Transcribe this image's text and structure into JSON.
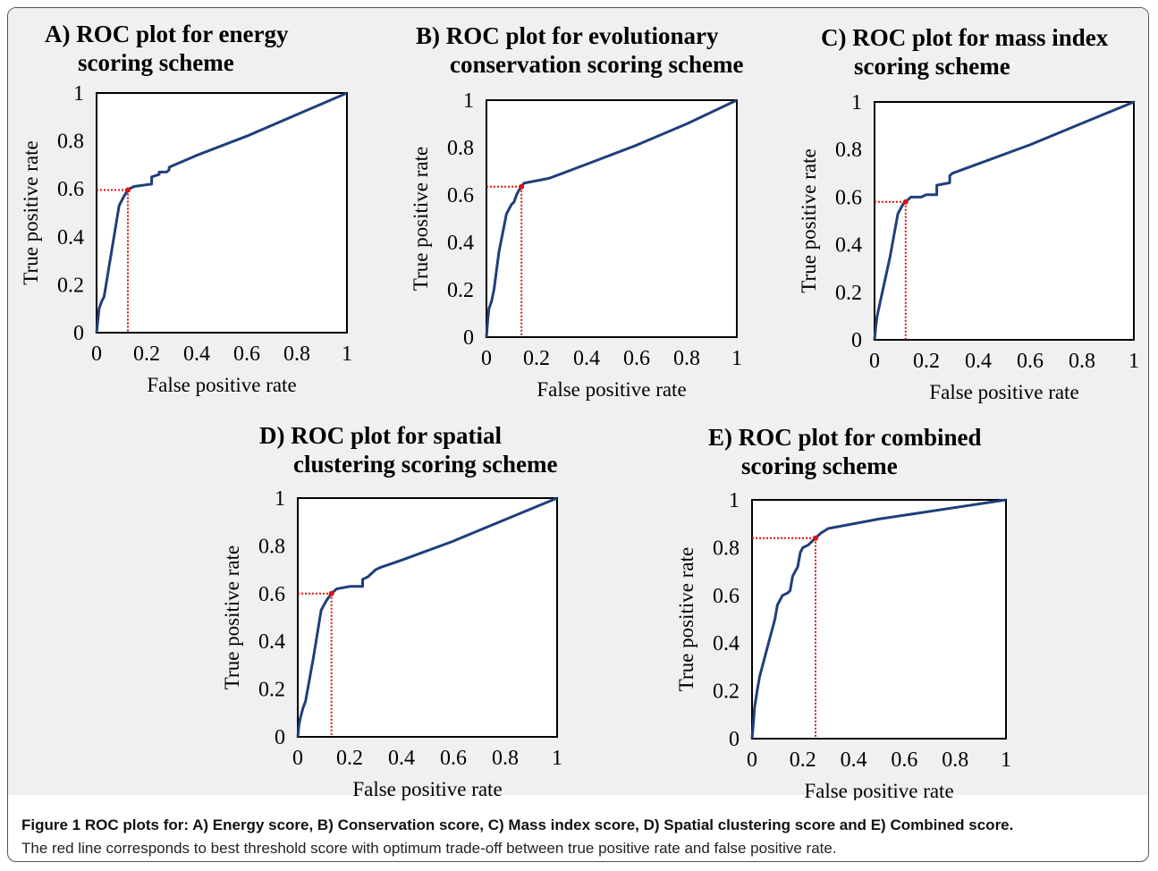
{
  "caption": {
    "figure_label": "Figure 1",
    "bold_text": "ROC plots for: A) Energy score, B) Conservation score, C) Mass index score, D) Spatial clustering score and E) Combined score.",
    "text": "The red line corresponds to best threshold score with optimum trade-off between true positive rate and false positive rate."
  },
  "colors": {
    "curve": "#1f3f7a",
    "threshold": "#dd1111",
    "axis": "#000000"
  },
  "chart_data": [
    {
      "type": "line",
      "title_lines": [
        "A) ROC plot for energy",
        "scoring scheme"
      ],
      "xlabel": "False positive rate",
      "ylabel": "True positive rate",
      "xlim": [
        0,
        1
      ],
      "ylim": [
        0,
        1
      ],
      "x_ticks": [
        "0",
        "0.2",
        "0.4",
        "0.6",
        "0.8",
        "1"
      ],
      "y_ticks": [
        "0",
        "0.2",
        "0.4",
        "0.6",
        "0.8",
        "1"
      ],
      "grid": false,
      "threshold": {
        "fpr": 0.125,
        "tpr": 0.595
      },
      "series": [
        {
          "x": [
            0,
            0.005,
            0.01,
            0.02,
            0.03,
            0.06,
            0.09,
            0.1,
            0.11,
            0.125,
            0.13,
            0.15,
            0.22,
            0.22,
            0.25,
            0.25,
            0.28,
            0.29,
            0.29,
            0.3,
            0.4,
            0.6,
            0.8,
            1.0
          ],
          "y": [
            0,
            0.05,
            0.1,
            0.13,
            0.15,
            0.34,
            0.53,
            0.55,
            0.57,
            0.595,
            0.6,
            0.61,
            0.62,
            0.65,
            0.66,
            0.67,
            0.67,
            0.68,
            0.69,
            0.695,
            0.74,
            0.82,
            0.91,
            1.0
          ]
        }
      ]
    },
    {
      "type": "line",
      "title_lines": [
        "B) ROC plot for evolutionary",
        "conservation scoring scheme"
      ],
      "xlabel": "False positive rate",
      "ylabel": "True positive rate",
      "xlim": [
        0,
        1
      ],
      "ylim": [
        0,
        1
      ],
      "x_ticks": [
        "0",
        "0.2",
        "0.4",
        "0.6",
        "0.8",
        "1"
      ],
      "y_ticks": [
        "0",
        "0.2",
        "0.4",
        "0.6",
        "0.8",
        "1"
      ],
      "grid": false,
      "threshold": {
        "fpr": 0.14,
        "tpr": 0.635
      },
      "series": [
        {
          "x": [
            0,
            0.005,
            0.01,
            0.02,
            0.03,
            0.05,
            0.08,
            0.1,
            0.11,
            0.12,
            0.13,
            0.14,
            0.15,
            0.2,
            0.25,
            0.3,
            0.4,
            0.6,
            0.8,
            1.0
          ],
          "y": [
            0,
            0.07,
            0.12,
            0.15,
            0.2,
            0.36,
            0.52,
            0.56,
            0.57,
            0.6,
            0.62,
            0.635,
            0.65,
            0.66,
            0.67,
            0.69,
            0.73,
            0.81,
            0.9,
            1.0
          ]
        }
      ]
    },
    {
      "type": "line",
      "title_lines": [
        "C) ROC plot for mass index",
        "scoring scheme"
      ],
      "xlabel": "False positive rate",
      "ylabel": "True positive rate",
      "xlim": [
        0,
        1
      ],
      "ylim": [
        0,
        1
      ],
      "x_ticks": [
        "0",
        "0.2",
        "0.4",
        "0.6",
        "0.8",
        "1"
      ],
      "y_ticks": [
        "0",
        "0.2",
        "0.4",
        "0.6",
        "0.8",
        "1"
      ],
      "grid": false,
      "threshold": {
        "fpr": 0.12,
        "tpr": 0.58
      },
      "series": [
        {
          "x": [
            0,
            0.005,
            0.01,
            0.02,
            0.03,
            0.06,
            0.09,
            0.1,
            0.11,
            0.12,
            0.14,
            0.18,
            0.2,
            0.24,
            0.24,
            0.29,
            0.29,
            0.3,
            0.4,
            0.6,
            0.8,
            1.0
          ],
          "y": [
            0,
            0.06,
            0.1,
            0.15,
            0.2,
            0.35,
            0.53,
            0.55,
            0.57,
            0.58,
            0.6,
            0.6,
            0.61,
            0.61,
            0.65,
            0.66,
            0.69,
            0.7,
            0.74,
            0.82,
            0.91,
            1.0
          ]
        }
      ]
    },
    {
      "type": "line",
      "title_lines": [
        "D) ROC plot for spatial",
        "clustering scoring scheme"
      ],
      "xlabel": "False positive rate",
      "ylabel": "True positive rate",
      "xlim": [
        0,
        1
      ],
      "ylim": [
        0,
        1
      ],
      "x_ticks": [
        "0",
        "0.2",
        "0.4",
        "0.6",
        "0.8",
        "1"
      ],
      "y_ticks": [
        "0",
        "0.2",
        "0.4",
        "0.6",
        "0.8",
        "1"
      ],
      "grid": false,
      "threshold": {
        "fpr": 0.13,
        "tpr": 0.6
      },
      "series": [
        {
          "x": [
            0,
            0.005,
            0.01,
            0.02,
            0.03,
            0.06,
            0.09,
            0.1,
            0.11,
            0.13,
            0.14,
            0.15,
            0.2,
            0.25,
            0.25,
            0.27,
            0.3,
            0.32,
            0.4,
            0.6,
            0.8,
            1.0
          ],
          "y": [
            0,
            0.05,
            0.08,
            0.12,
            0.15,
            0.33,
            0.53,
            0.55,
            0.57,
            0.6,
            0.61,
            0.62,
            0.63,
            0.63,
            0.66,
            0.67,
            0.7,
            0.71,
            0.74,
            0.82,
            0.91,
            1.0
          ]
        }
      ]
    },
    {
      "type": "line",
      "title_lines": [
        "E) ROC plot for combined",
        "scoring scheme"
      ],
      "xlabel": "False positive rate",
      "ylabel": "True positive rate",
      "xlim": [
        0,
        1
      ],
      "ylim": [
        0,
        1
      ],
      "x_ticks": [
        "0",
        "0.2",
        "0.4",
        "0.6",
        "0.8",
        "1"
      ],
      "y_ticks": [
        "0",
        "0.2",
        "0.4",
        "0.6",
        "0.8",
        "1"
      ],
      "grid": false,
      "threshold": {
        "fpr": 0.25,
        "tpr": 0.84
      },
      "series": [
        {
          "x": [
            0,
            0.005,
            0.01,
            0.02,
            0.03,
            0.06,
            0.09,
            0.1,
            0.12,
            0.14,
            0.15,
            0.16,
            0.18,
            0.19,
            0.2,
            0.22,
            0.23,
            0.24,
            0.25,
            0.27,
            0.3,
            0.5,
            0.75,
            1.0
          ],
          "y": [
            0,
            0.06,
            0.13,
            0.2,
            0.26,
            0.38,
            0.5,
            0.56,
            0.6,
            0.61,
            0.62,
            0.68,
            0.72,
            0.78,
            0.8,
            0.81,
            0.82,
            0.83,
            0.84,
            0.86,
            0.88,
            0.92,
            0.96,
            1.0
          ]
        }
      ]
    }
  ]
}
